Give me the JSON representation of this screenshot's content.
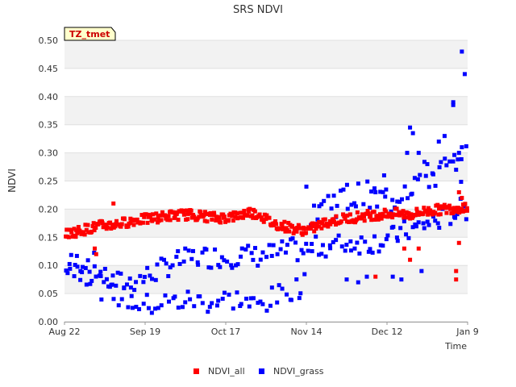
{
  "chart_data": {
    "type": "scatter",
    "title": "SRS NDVI",
    "xlabel": "Time",
    "ylabel": "NDVI",
    "site_tag": "TZ_tmet",
    "x_unit": "days since Aug 22",
    "xlim": [
      0,
      140
    ],
    "ylim": [
      0,
      0.5
    ],
    "x_ticks": [
      {
        "label": "Aug 22",
        "value": 0
      },
      {
        "label": "Sep 19",
        "value": 28
      },
      {
        "label": "Oct 17",
        "value": 56
      },
      {
        "label": "Nov 14",
        "value": 84
      },
      {
        "label": "Dec 12",
        "value": 112
      },
      {
        "label": "Jan 9",
        "value": 140
      }
    ],
    "y_ticks": [
      "0.00",
      "0.05",
      "0.10",
      "0.15",
      "0.20",
      "0.25",
      "0.30",
      "0.35",
      "0.40",
      "0.45",
      "0.50"
    ],
    "legend_position": "bottom-center",
    "series": [
      {
        "name": "NDVI_all",
        "color": "#ff0000",
        "trend": [
          [
            0,
            0.155
          ],
          [
            4,
            0.16
          ],
          [
            8,
            0.165
          ],
          [
            12,
            0.17
          ],
          [
            16,
            0.172
          ],
          [
            20,
            0.175
          ],
          [
            24,
            0.18
          ],
          [
            28,
            0.182
          ],
          [
            32,
            0.185
          ],
          [
            36,
            0.188
          ],
          [
            40,
            0.19
          ],
          [
            44,
            0.19
          ],
          [
            48,
            0.188
          ],
          [
            52,
            0.185
          ],
          [
            56,
            0.185
          ],
          [
            60,
            0.188
          ],
          [
            64,
            0.195
          ],
          [
            68,
            0.19
          ],
          [
            72,
            0.175
          ],
          [
            76,
            0.17
          ],
          [
            80,
            0.165
          ],
          [
            84,
            0.162
          ],
          [
            88,
            0.17
          ],
          [
            92,
            0.178
          ],
          [
            96,
            0.182
          ],
          [
            100,
            0.185
          ],
          [
            104,
            0.188
          ],
          [
            108,
            0.19
          ],
          [
            112,
            0.192
          ],
          [
            116,
            0.192
          ],
          [
            120,
            0.19
          ],
          [
            124,
            0.195
          ],
          [
            128,
            0.198
          ],
          [
            132,
            0.2
          ],
          [
            136,
            0.202
          ],
          [
            140,
            0.205
          ]
        ],
        "outliers": [
          [
            10.5,
            0.13
          ],
          [
            11,
            0.12
          ],
          [
            17,
            0.21
          ],
          [
            108,
            0.08
          ],
          [
            118,
            0.13
          ],
          [
            120,
            0.11
          ],
          [
            123,
            0.13
          ],
          [
            136,
            0.075
          ],
          [
            136,
            0.09
          ],
          [
            137,
            0.14
          ],
          [
            137,
            0.23
          ],
          [
            138,
            0.22
          ]
        ]
      },
      {
        "name": "NDVI_grass",
        "color": "#0000ff",
        "trend_upper": [
          [
            0,
            0.1
          ],
          [
            4,
            0.105
          ],
          [
            8,
            0.11
          ],
          [
            11,
            0.1
          ],
          [
            14,
            0.075
          ],
          [
            18,
            0.07
          ],
          [
            22,
            0.07
          ],
          [
            26,
            0.075
          ],
          [
            30,
            0.085
          ],
          [
            34,
            0.095
          ],
          [
            38,
            0.105
          ],
          [
            42,
            0.11
          ],
          [
            46,
            0.115
          ],
          [
            50,
            0.115
          ],
          [
            54,
            0.115
          ],
          [
            58,
            0.115
          ],
          [
            62,
            0.12
          ],
          [
            66,
            0.115
          ],
          [
            70,
            0.12
          ],
          [
            74,
            0.12
          ],
          [
            78,
            0.13
          ],
          [
            82,
            0.125
          ],
          [
            86,
            0.13
          ],
          [
            90,
            0.135
          ],
          [
            94,
            0.135
          ],
          [
            98,
            0.14
          ],
          [
            102,
            0.14
          ],
          [
            106,
            0.14
          ],
          [
            110,
            0.145
          ],
          [
            114,
            0.15
          ],
          [
            118,
            0.16
          ],
          [
            122,
            0.165
          ],
          [
            126,
            0.175
          ],
          [
            130,
            0.18
          ],
          [
            134,
            0.19
          ],
          [
            138,
            0.2
          ],
          [
            140,
            0.2
          ]
        ],
        "trend_lower": [
          [
            0,
            0.095
          ],
          [
            6,
            0.09
          ],
          [
            10,
            0.08
          ],
          [
            13,
            0.06
          ],
          [
            16,
            0.05
          ],
          [
            20,
            0.045
          ],
          [
            24,
            0.035
          ],
          [
            28,
            0.03
          ],
          [
            32,
            0.03
          ],
          [
            36,
            0.035
          ],
          [
            40,
            0.035
          ],
          [
            44,
            0.04
          ],
          [
            48,
            0.035
          ],
          [
            52,
            0.035
          ],
          [
            56,
            0.04
          ],
          [
            60,
            0.04
          ],
          [
            64,
            0.03
          ],
          [
            68,
            0.03
          ],
          [
            72,
            0.04
          ],
          [
            76,
            0.05
          ],
          [
            80,
            0.06
          ],
          [
            84,
            0.065
          ]
        ],
        "trend_high": [
          [
            86,
            0.2
          ],
          [
            90,
            0.21
          ],
          [
            94,
            0.215
          ],
          [
            98,
            0.22
          ],
          [
            102,
            0.22
          ],
          [
            106,
            0.22
          ],
          [
            110,
            0.215
          ],
          [
            114,
            0.22
          ],
          [
            118,
            0.24
          ],
          [
            122,
            0.25
          ],
          [
            126,
            0.26
          ],
          [
            130,
            0.265
          ],
          [
            134,
            0.27
          ],
          [
            138,
            0.28
          ],
          [
            140,
            0.285
          ]
        ],
        "outliers": [
          [
            84,
            0.24
          ],
          [
            108,
            0.23
          ],
          [
            111,
            0.26
          ],
          [
            119,
            0.3
          ],
          [
            120,
            0.345
          ],
          [
            121,
            0.335
          ],
          [
            123,
            0.3
          ],
          [
            126,
            0.28
          ],
          [
            130,
            0.32
          ],
          [
            132,
            0.33
          ],
          [
            135,
            0.39
          ],
          [
            135,
            0.385
          ],
          [
            136,
            0.27
          ],
          [
            138,
            0.48
          ],
          [
            139,
            0.44
          ],
          [
            137,
            0.3
          ],
          [
            138,
            0.31
          ],
          [
            114,
            0.08
          ],
          [
            117,
            0.075
          ],
          [
            124,
            0.09
          ],
          [
            98,
            0.075
          ],
          [
            102,
            0.07
          ],
          [
            105,
            0.08
          ]
        ]
      }
    ]
  }
}
